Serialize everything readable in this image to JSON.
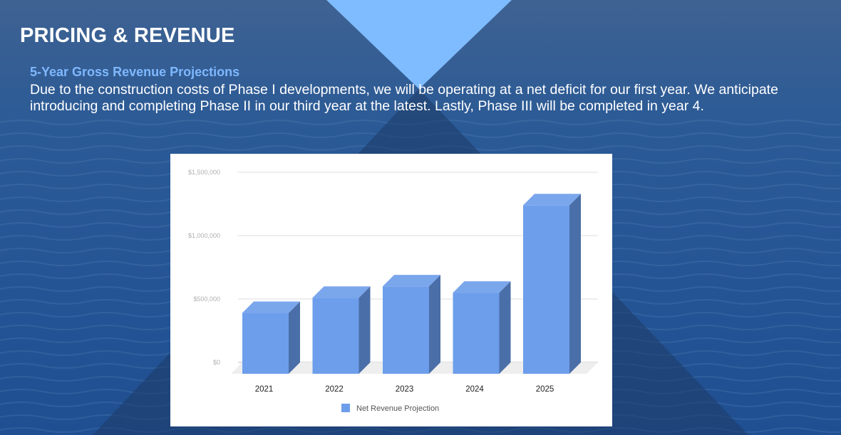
{
  "slide": {
    "title": "PRICING & REVENUE",
    "subtitle": "5-Year Gross Revenue Projections",
    "body": "Due to the construction costs of Phase I developments, we will be operating at a net deficit for our first year. We anticipate introducing and completing Phase II in our third year at the latest. Lastly, Phase III will be completed in year 4."
  },
  "colors": {
    "background": "#2f5a8f",
    "triangle_accent": "#7fbcff",
    "bar_front": "#6d9eeb",
    "bar_top": "#7aa6ec",
    "bar_side": "#4a6fa8"
  },
  "chart_data": {
    "type": "bar",
    "style": "3d",
    "categories": [
      "2021",
      "2022",
      "2023",
      "2024",
      "2025"
    ],
    "series": [
      {
        "name": "Net Revenue Projection",
        "values": [
          480000,
          600000,
          690000,
          640000,
          1330000
        ]
      }
    ],
    "yticks": [
      0,
      500000,
      1000000,
      1500000
    ],
    "ytick_labels": [
      "$0",
      "$500,000",
      "$1,000,000",
      "$1,500,000"
    ],
    "ylim": [
      0,
      1500000
    ],
    "grid": true,
    "legend_position": "bottom",
    "title": "",
    "xlabel": "",
    "ylabel": ""
  }
}
